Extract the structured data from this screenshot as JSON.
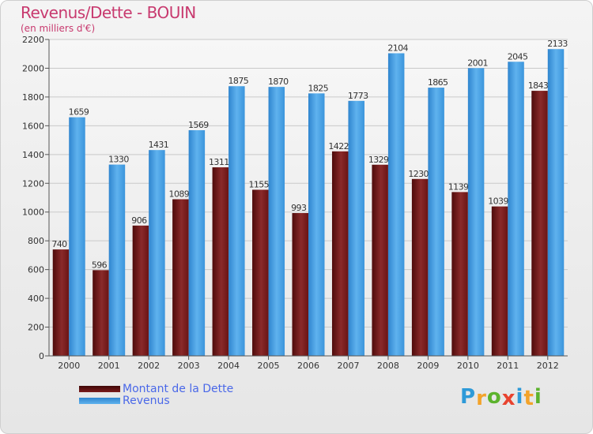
{
  "title": "Revenus/Dette - BOUIN",
  "subtitle": "(en milliers d'€)",
  "logo": {
    "letters": [
      "P",
      "r",
      "o",
      "x",
      "i",
      "t",
      "i"
    ],
    "colors": [
      "#2e9ad8",
      "#f3a32a",
      "#5cb32d",
      "#e8432f",
      "#2e9ad8",
      "#f3a32a",
      "#5cb32d"
    ]
  },
  "chart_data": {
    "type": "bar",
    "categories": [
      "2000",
      "2001",
      "2002",
      "2003",
      "2004",
      "2005",
      "2006",
      "2007",
      "2008",
      "2009",
      "2010",
      "2011",
      "2012"
    ],
    "ylim": [
      0,
      2200
    ],
    "yticks": [
      "0",
      "200",
      "400",
      "600",
      "800",
      "1000",
      "1200",
      "1400",
      "1600",
      "1800",
      "2000",
      "2200"
    ],
    "grid": true,
    "legend_position": "bottom-left",
    "series": [
      {
        "name": "Montant de la Dette",
        "color": "#7a1a1a",
        "values": [
          740,
          596,
          906,
          1089,
          1311,
          1155,
          993,
          1422,
          1329,
          1230,
          1139,
          1039,
          1843
        ],
        "labels": [
          "740",
          "596",
          "906",
          "1089",
          "1311",
          "1155",
          "993",
          "1422",
          "1329",
          "1230",
          "1139",
          "1039",
          "1843"
        ]
      },
      {
        "name": "Revenus",
        "color": "#3d9be0",
        "values": [
          1659,
          1330,
          1431,
          1569,
          1875,
          1870,
          1825,
          1773,
          2104,
          1865,
          2001,
          2045,
          2133
        ],
        "labels": [
          "1659",
          "1330",
          "1431",
          "1569",
          "1875",
          "1870",
          "1825",
          "1773",
          "2104",
          "1865",
          "2001",
          "2045",
          "2133"
        ]
      }
    ]
  }
}
